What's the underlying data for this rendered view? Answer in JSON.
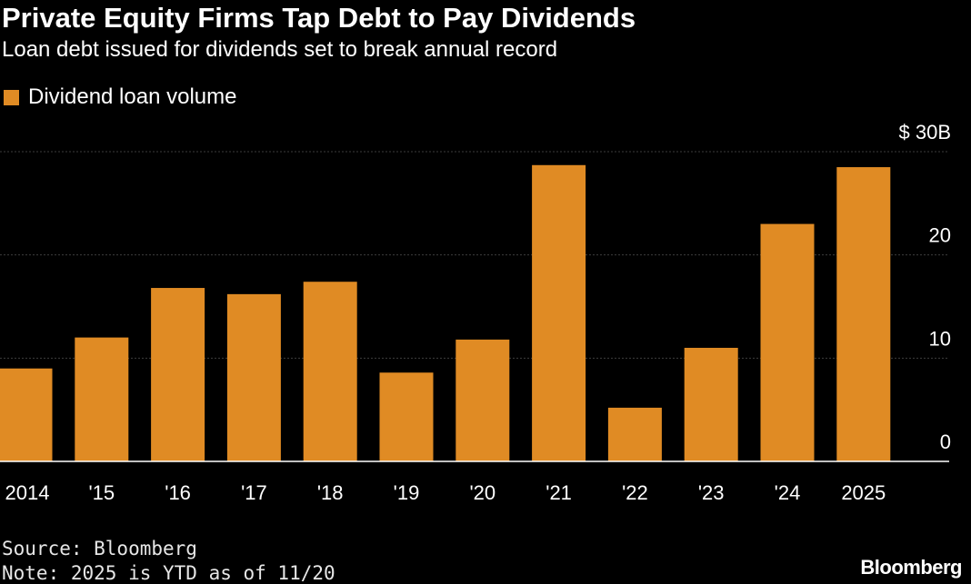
{
  "header": {
    "title": "Private Equity Firms Tap Debt to Pay Dividends",
    "subtitle": "Loan debt issued for dividends set to break annual record"
  },
  "legend": {
    "label": "Dividend loan volume"
  },
  "colors": {
    "bar": "#E08B24",
    "grid": "#3d3d3d",
    "axis": "#ffffff",
    "background": "#000000"
  },
  "chart_data": {
    "type": "bar",
    "title": "Private Equity Firms Tap Debt to Pay Dividends",
    "subtitle": "Loan debt issued for dividends set to break annual record",
    "xlabel": "",
    "ylabel": "",
    "ylim": [
      0,
      30
    ],
    "yticks": [
      0,
      10,
      20,
      30
    ],
    "ytick_labels": [
      "0",
      "10",
      "20",
      "$ 30B"
    ],
    "grid": true,
    "legend_position": "top-left",
    "categories": [
      "2014",
      "'15",
      "'16",
      "'17",
      "'18",
      "'19",
      "'20",
      "'21",
      "'22",
      "'23",
      "'24",
      "2025"
    ],
    "series": [
      {
        "name": "Dividend loan volume",
        "values": [
          9.0,
          12.0,
          16.8,
          16.2,
          17.4,
          8.6,
          11.8,
          28.7,
          5.2,
          11.0,
          23.0,
          28.5
        ]
      }
    ]
  },
  "footer": {
    "source": "Source: Bloomberg",
    "note": "Note: 2025 is YTD as of 11/20",
    "brand": "Bloomberg"
  }
}
